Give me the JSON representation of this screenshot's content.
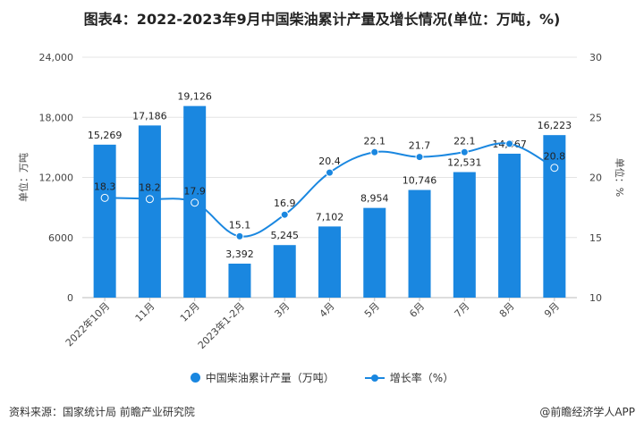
{
  "chart_data": {
    "type": "bar+line",
    "title": "图表4：2022-2023年9月中国柴油累计产量及增长情况(单位：万吨，%)",
    "categories": [
      "2022年10月",
      "11月",
      "12月",
      "2023年1-2月",
      "3月",
      "4月",
      "5月",
      "6月",
      "7月",
      "8月",
      "9月"
    ],
    "series": [
      {
        "name": "中国柴油累计产量（万吨）",
        "type": "bar",
        "axis": "left",
        "values": [
          15269,
          17186,
          19126,
          3392,
          5245,
          7102,
          8954,
          10746,
          12531,
          14367,
          16223
        ],
        "labels": [
          "15,269",
          "17,186",
          "19,126",
          "3,392",
          "5,245",
          "7,102",
          "8,954",
          "10,746",
          "12,531",
          "14,367",
          "16,223"
        ]
      },
      {
        "name": "增长率（%）",
        "type": "line",
        "axis": "right",
        "values": [
          18.3,
          18.2,
          17.9,
          15.1,
          16.9,
          20.4,
          22.1,
          21.7,
          22.1,
          22.8,
          20.8
        ],
        "labels": [
          "18.3",
          "18.2",
          "17.9",
          "15.1",
          "16.9",
          "20.4",
          "22.1",
          "21.7",
          "22.1",
          "",
          "20.8"
        ]
      }
    ],
    "ylabel": "单位：万吨",
    "y2label": "单位：%",
    "ylim": [
      0,
      24000
    ],
    "yticks": [
      "0",
      "6000",
      "12,000",
      "18,000",
      "24,000"
    ],
    "ytick_values": [
      0,
      6000,
      12000,
      18000,
      24000
    ],
    "y2lim": [
      10,
      30
    ],
    "y2ticks": [
      "10",
      "15",
      "20",
      "25",
      "30"
    ],
    "y2tick_values": [
      10,
      15,
      20,
      25,
      30
    ],
    "grid": true,
    "legend_position": "bottom",
    "colors": {
      "bar": "#1a87e0",
      "line": "#1a87e0"
    }
  },
  "footer": {
    "source": "资料来源：国家统计局 前瞻产业研究院",
    "brand": "@前瞻经济学人APP"
  }
}
